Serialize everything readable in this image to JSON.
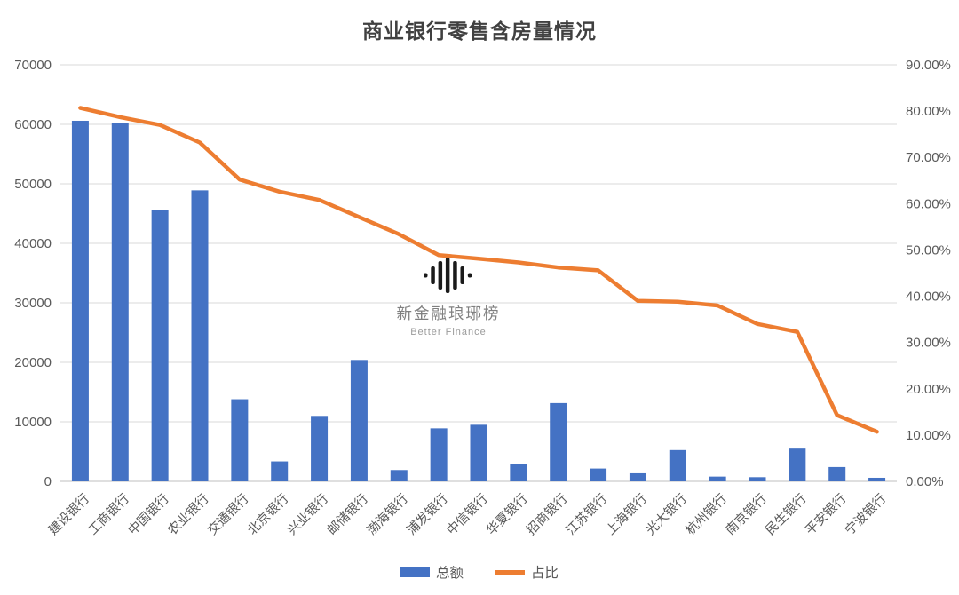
{
  "title": "商业银行零售含房量情况",
  "watermark": {
    "brand": "新金融琅琊榜",
    "subtitle": "Better Finance",
    "icon": "audio-waveform-icon",
    "icon_color": "#1a1a1a"
  },
  "legend": {
    "bar_label": "总额",
    "line_label": "占比"
  },
  "colors": {
    "bar": "#4472C4",
    "line": "#ED7D31",
    "gridline": "#D9D9D9",
    "axis_line": "#BFBFBF",
    "axis_text": "#595959",
    "title_text": "#404040"
  },
  "chart_data": {
    "type": "combo-bar-line",
    "title": "商业银行零售含房量情况",
    "categories": [
      "建设银行",
      "工商银行",
      "中国银行",
      "农业银行",
      "交通银行",
      "北京银行",
      "兴业银行",
      "邮储银行",
      "渤海银行",
      "浦发银行",
      "中信银行",
      "华夏银行",
      "招商银行",
      "江苏银行",
      "上海银行",
      "光大银行",
      "杭州银行",
      "南京银行",
      "民生银行",
      "平安银行",
      "宁波银行"
    ],
    "series": [
      {
        "name": "总额",
        "type": "bar",
        "axis": "left",
        "color": "#4472C4",
        "values": [
          60600,
          60150,
          45600,
          48900,
          13800,
          3350,
          11000,
          20400,
          1900,
          8900,
          9500,
          2900,
          13150,
          2150,
          1350,
          5250,
          800,
          700,
          5500,
          2400,
          600
        ]
      },
      {
        "name": "占比",
        "type": "line",
        "axis": "right",
        "color": "#ED7D31",
        "values": [
          80.7,
          78.7,
          77.0,
          73.2,
          65.2,
          62.6,
          60.8,
          57.1,
          53.4,
          48.9,
          48.1,
          47.3,
          46.2,
          45.6,
          39.0,
          38.8,
          38.0,
          34.0,
          32.3,
          14.3,
          10.7
        ]
      }
    ],
    "left_axis": {
      "min": 0,
      "max": 70000,
      "step": 10000,
      "tick_labels": [
        "0",
        "10000",
        "20000",
        "30000",
        "40000",
        "50000",
        "60000",
        "70000"
      ]
    },
    "right_axis": {
      "min": 0,
      "max": 90,
      "step": 10,
      "tick_labels": [
        "0.00%",
        "10.00%",
        "20.00%",
        "30.00%",
        "40.00%",
        "50.00%",
        "60.00%",
        "70.00%",
        "80.00%",
        "90.00%"
      ]
    },
    "grid": true,
    "legend_position": "bottom",
    "x_label_rotation": -45
  }
}
